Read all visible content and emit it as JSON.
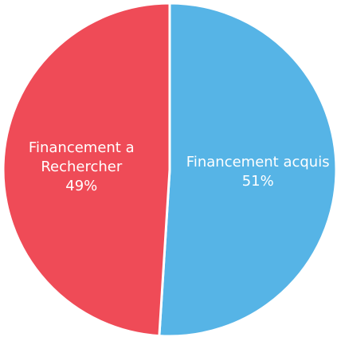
{
  "chart_data": {
    "type": "pie",
    "categories": [
      "Financement acquis",
      "Financement a Rechercher"
    ],
    "values": [
      51,
      49
    ],
    "value_labels": [
      "51%",
      "49%"
    ],
    "colors": [
      "#56b4e6",
      "#ef4b57"
    ]
  }
}
